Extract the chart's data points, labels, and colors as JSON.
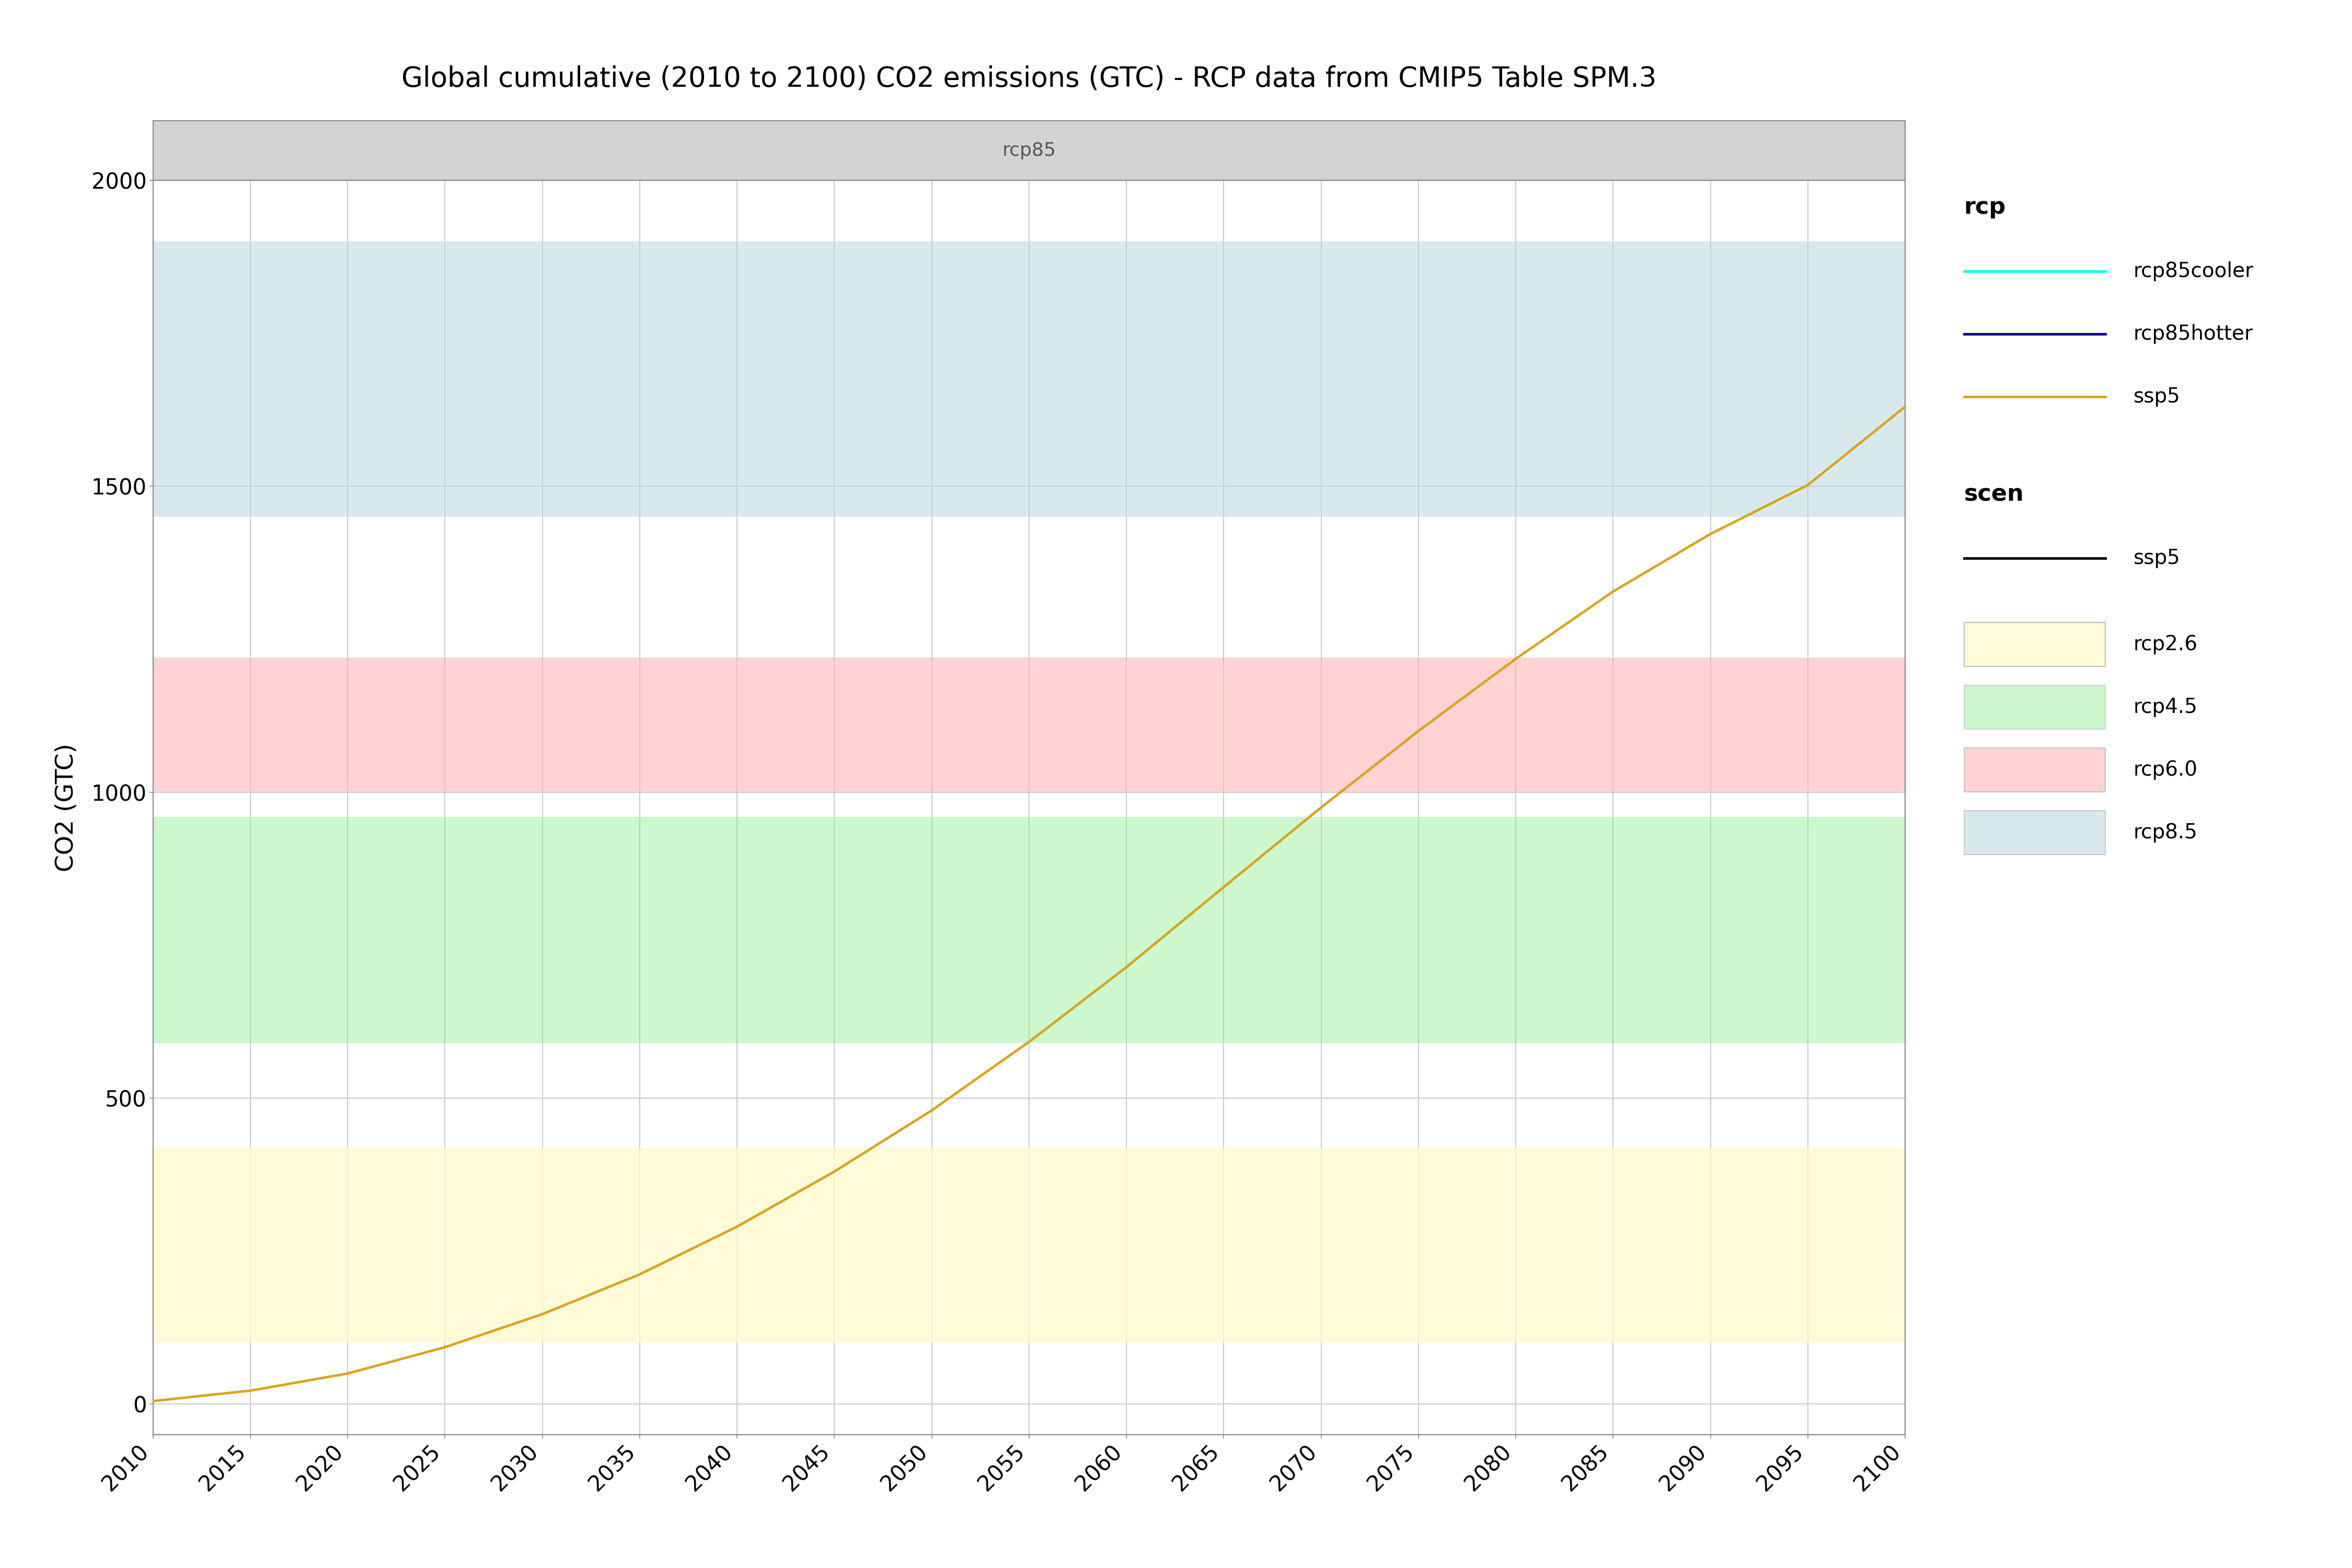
{
  "title": "Global cumulative (2010 to 2100) CO2 emissions (GTC) - RCP data from CMIP5 Table SPM.3",
  "strip_label": "rcp85",
  "ylabel": "CO2 (GTC)",
  "xlabel": "",
  "xlim": [
    2010,
    2100
  ],
  "ylim": [
    -50,
    2000
  ],
  "yticks": [
    0,
    500,
    1000,
    1500,
    2000
  ],
  "xticks": [
    2010,
    2015,
    2020,
    2025,
    2030,
    2035,
    2040,
    2045,
    2050,
    2055,
    2060,
    2065,
    2070,
    2075,
    2080,
    2085,
    2090,
    2095,
    2100
  ],
  "bands": [
    {
      "label": "rcp2.6",
      "ymin": 100,
      "ymax": 420,
      "color": "#FFFACD",
      "alpha": 0.75
    },
    {
      "label": "rcp4.5",
      "ymin": 590,
      "ymax": 960,
      "color": "#90EE90",
      "alpha": 0.45
    },
    {
      "label": "rcp6.0",
      "ymin": 1000,
      "ymax": 1220,
      "color": "#FFB6B6",
      "alpha": 0.6
    },
    {
      "label": "rcp8.5",
      "ymin": 1450,
      "ymax": 1900,
      "color": "#B8D8E0",
      "alpha": 0.55
    }
  ],
  "ssp5_x": [
    2010,
    2015,
    2020,
    2025,
    2030,
    2035,
    2040,
    2045,
    2050,
    2055,
    2060,
    2065,
    2070,
    2075,
    2080,
    2085,
    2090,
    2095,
    2100
  ],
  "ssp5_y": [
    5,
    22,
    50,
    93,
    147,
    212,
    290,
    380,
    480,
    592,
    714,
    845,
    975,
    1100,
    1218,
    1328,
    1422,
    1502,
    1630
  ],
  "ssp5_color": "#DAA520",
  "ssp5_linewidth": 3.5,
  "rcp85cooler_color": "#00FFFF",
  "rcp85hotter_color": "#00008B",
  "legend_rcp_title": "rcp",
  "legend_scen_title": "scen",
  "legend_band_labels": [
    "rcp2.6",
    "rcp4.5",
    "rcp6.0",
    "rcp8.5"
  ],
  "legend_band_colors": [
    "#FFFACD",
    "#90EE90",
    "#FFB6B6",
    "#B8D8E0"
  ],
  "strip_bg_color": "#D3D3D3",
  "strip_text_color": "#555555",
  "background_color": "#FFFFFF",
  "grid_color": "#CCCCCC",
  "title_fontsize": 38,
  "axis_label_fontsize": 34,
  "tick_fontsize": 30,
  "legend_title_fontsize": 32,
  "legend_item_fontsize": 28,
  "strip_fontsize": 26
}
